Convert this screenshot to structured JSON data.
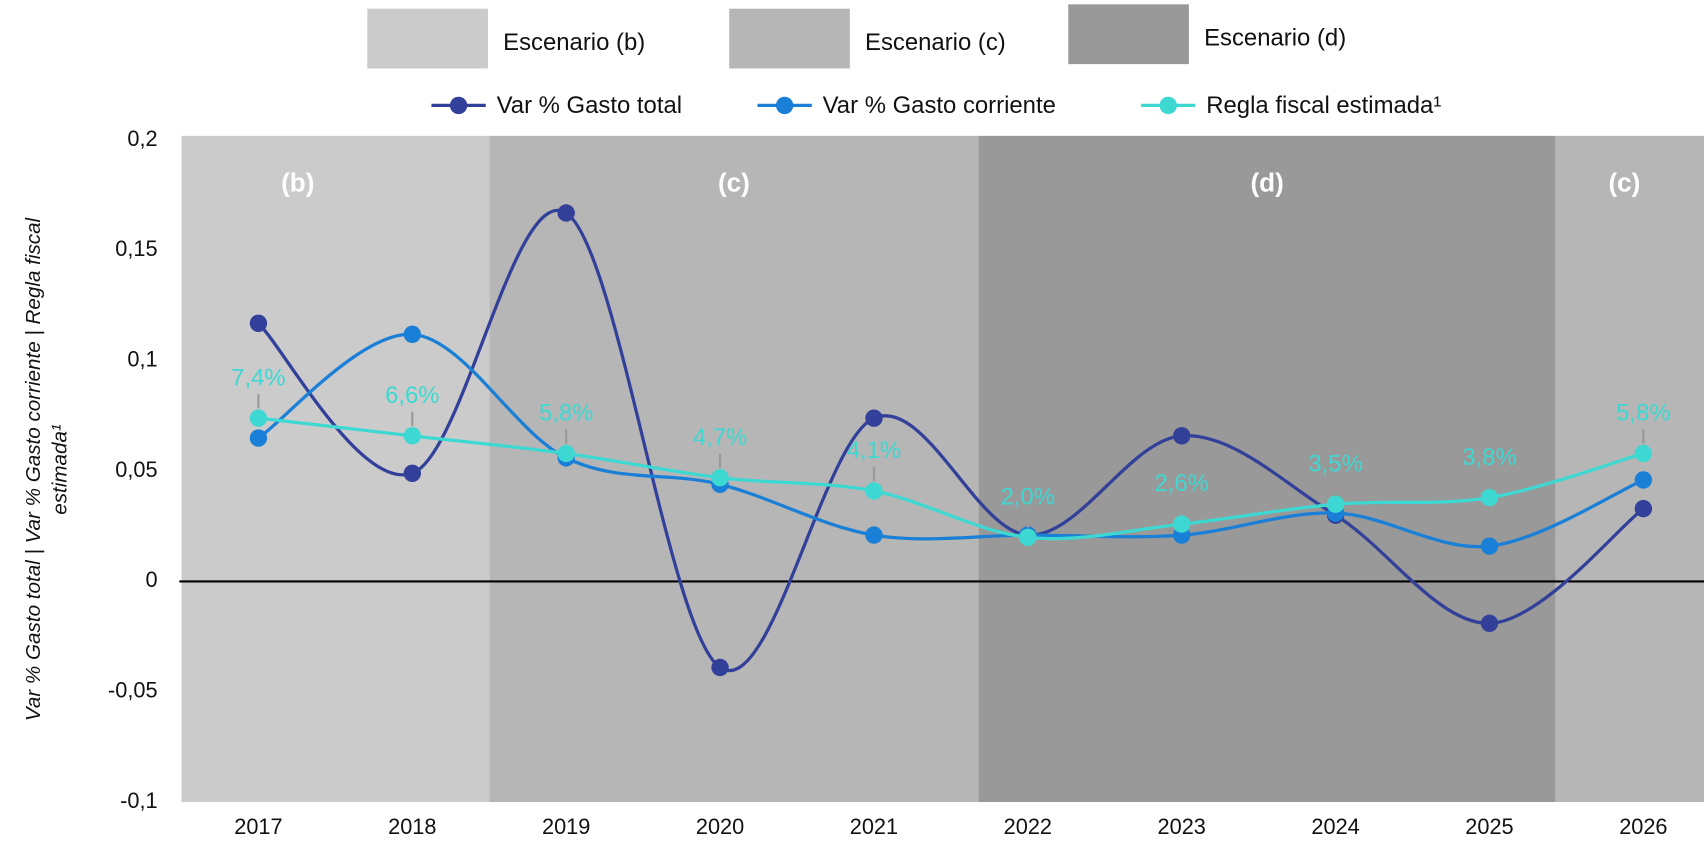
{
  "chart_data": {
    "type": "line",
    "y_label": [
      "Var % Gasto total | Var % Gasto corriente | Regla fiscal",
      "estimada¹"
    ],
    "categories": [
      "2017",
      "2018",
      "2019",
      "2020",
      "2021",
      "2022",
      "2023",
      "2024",
      "2025",
      "2026"
    ],
    "series": [
      {
        "name": "Var % Gasto total",
        "color": "#32409a",
        "values": [
          0.117,
          0.049,
          0.167,
          -0.039,
          0.074,
          0.021,
          0.066,
          0.03,
          -0.019,
          0.033
        ]
      },
      {
        "name": "Var % Gasto corriente",
        "color": "#1a7fd6",
        "values": [
          0.065,
          0.112,
          0.056,
          0.044,
          0.021,
          0.021,
          0.021,
          0.031,
          0.016,
          0.046
        ]
      },
      {
        "name": "Regla fiscal estimada¹",
        "color": "#3ed8d2",
        "values": [
          0.074,
          0.066,
          0.058,
          0.047,
          0.041,
          0.02,
          0.026,
          0.035,
          0.038,
          0.058
        ],
        "value_labels": [
          "7,4%",
          "6,6%",
          "5,8%",
          "4,7%",
          "4,1%",
          "2,0%",
          "2,6%",
          "3,5%",
          "3,8%",
          "5,8%"
        ]
      }
    ],
    "scenario_legend": [
      {
        "name": "Escenario (b)",
        "color": "#cbcbcb"
      },
      {
        "name": "Escenario (c)",
        "color": "#b6b6b6"
      },
      {
        "name": "Escenario (d)",
        "color": "#999999"
      }
    ],
    "regions": [
      {
        "label": "(b)",
        "start": 2016.5,
        "end": 2018.5,
        "color": "#cbcbcb"
      },
      {
        "label": "(c)",
        "start": 2018.5,
        "end": 2021.68,
        "color": "#b6b6b6"
      },
      {
        "label": "(d)",
        "start": 2021.68,
        "end": 2025.43,
        "color": "#999999"
      },
      {
        "label": "(c)",
        "start": 2025.43,
        "end": 2026.5,
        "color": "#b6b6b6"
      }
    ],
    "ylim": [
      -0.1,
      0.2
    ],
    "yticks": [
      {
        "value": -0.1,
        "label": "-0,1"
      },
      {
        "value": -0.05,
        "label": "-0,05"
      },
      0,
      {
        "value": 0.05,
        "label": "0,05"
      },
      {
        "value": 0.1,
        "label": "0,1"
      },
      {
        "value": 0.15,
        "label": "0,15"
      },
      {
        "value": 0.2,
        "label": "0,2"
      }
    ],
    "grid": false
  }
}
